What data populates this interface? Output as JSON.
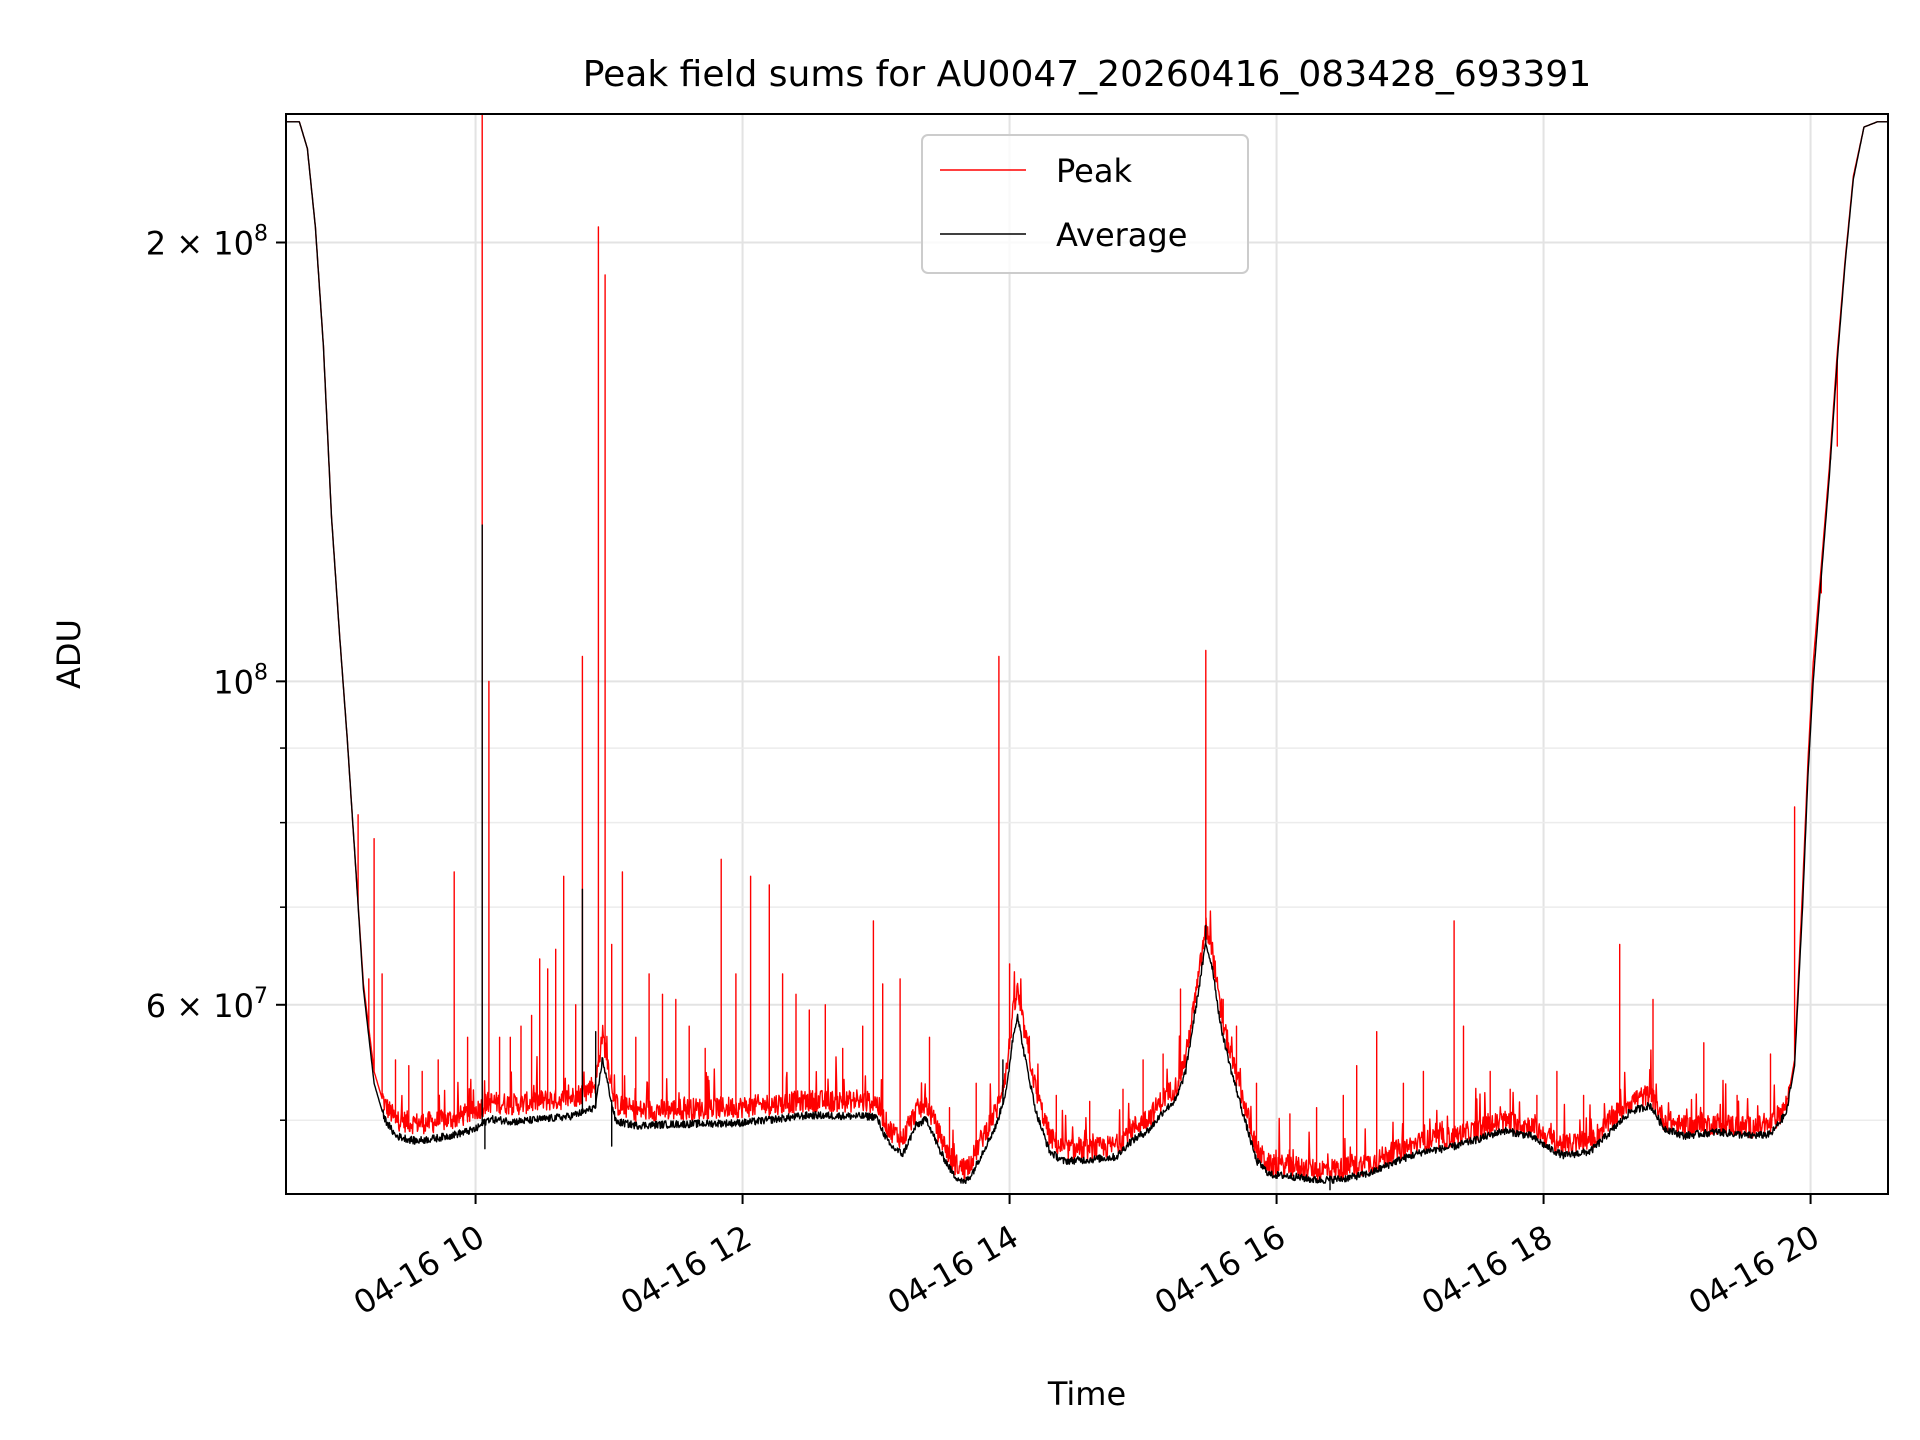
{
  "chart_data": {
    "type": "line",
    "title": "Peak field sums for AU0047_20260416_083428_693391",
    "xlabel": "Time",
    "ylabel": "ADU",
    "x_unit": "time of day on 04-16 (hours)",
    "xlim": [
      8.58,
      20.58
    ],
    "ylim": [
      44500000,
      245000000
    ],
    "yscale": "log",
    "grid": true,
    "legend_position": "top-center",
    "x_ticks": [
      {
        "value": 10,
        "label": "04-16 10"
      },
      {
        "value": 12,
        "label": "04-16 12"
      },
      {
        "value": 14,
        "label": "04-16 14"
      },
      {
        "value": 16,
        "label": "04-16 16"
      },
      {
        "value": 18,
        "label": "04-16 18"
      },
      {
        "value": 20,
        "label": "04-16 20"
      }
    ],
    "y_major_ticks": [
      {
        "value": 60000000,
        "label": "6 × 10",
        "exponent": "7"
      },
      {
        "value": 100000000,
        "label": "10",
        "exponent": "8"
      },
      {
        "value": 200000000,
        "label": "2 × 10",
        "exponent": "8"
      }
    ],
    "y_minor_ticks": [
      50000000,
      70000000,
      80000000,
      90000000
    ],
    "series": [
      {
        "name": "Peak",
        "color": "#ff0000",
        "baseline": [
          [
            8.58,
            242000000
          ],
          [
            8.68,
            242000000
          ],
          [
            8.74,
            232000000
          ],
          [
            8.8,
            205000000
          ],
          [
            8.86,
            170000000
          ],
          [
            8.92,
            130000000
          ],
          [
            8.98,
            108000000
          ],
          [
            9.04,
            91000000
          ],
          [
            9.1,
            75000000
          ],
          [
            9.16,
            62000000
          ],
          [
            9.24,
            54000000
          ],
          [
            9.32,
            51000000
          ],
          [
            9.4,
            49800000
          ],
          [
            9.55,
            49500000
          ],
          [
            9.7,
            49600000
          ],
          [
            9.85,
            49900000
          ],
          [
            10.0,
            50500000
          ],
          [
            10.1,
            51200000
          ],
          [
            10.3,
            51000000
          ],
          [
            10.5,
            51300000
          ],
          [
            10.7,
            51500000
          ],
          [
            10.82,
            52000000
          ],
          [
            10.9,
            52800000
          ],
          [
            10.95,
            57000000
          ],
          [
            11.05,
            51000000
          ],
          [
            11.2,
            50500000
          ],
          [
            11.5,
            50600000
          ],
          [
            12.0,
            50800000
          ],
          [
            12.5,
            51300000
          ],
          [
            13.0,
            51200000
          ],
          [
            13.1,
            49000000
          ],
          [
            13.2,
            48300000
          ],
          [
            13.3,
            50500000
          ],
          [
            13.38,
            51000000
          ],
          [
            13.48,
            48500000
          ],
          [
            13.58,
            46500000
          ],
          [
            13.66,
            46000000
          ],
          [
            13.72,
            46800000
          ],
          [
            13.8,
            48500000
          ],
          [
            13.9,
            50500000
          ],
          [
            13.98,
            54000000
          ],
          [
            14.02,
            58500000
          ],
          [
            14.06,
            61000000
          ],
          [
            14.1,
            58000000
          ],
          [
            14.2,
            52000000
          ],
          [
            14.3,
            48500000
          ],
          [
            14.4,
            47500000
          ],
          [
            14.6,
            47500000
          ],
          [
            14.8,
            47800000
          ],
          [
            14.9,
            49000000
          ],
          [
            15.05,
            50000000
          ],
          [
            15.15,
            51500000
          ],
          [
            15.25,
            52500000
          ],
          [
            15.32,
            55000000
          ],
          [
            15.4,
            61000000
          ],
          [
            15.47,
            67500000
          ],
          [
            15.52,
            65000000
          ],
          [
            15.58,
            59000000
          ],
          [
            15.66,
            55000000
          ],
          [
            15.76,
            51000000
          ],
          [
            15.85,
            47500000
          ],
          [
            15.95,
            46300000
          ],
          [
            16.1,
            46300000
          ],
          [
            16.3,
            46000000
          ],
          [
            16.5,
            46100000
          ],
          [
            16.7,
            46500000
          ],
          [
            16.9,
            47400000
          ],
          [
            17.1,
            48100000
          ],
          [
            17.3,
            48400000
          ],
          [
            17.5,
            49000000
          ],
          [
            17.7,
            49700000
          ],
          [
            17.9,
            49300000
          ],
          [
            18.05,
            48300000
          ],
          [
            18.15,
            47800000
          ],
          [
            18.35,
            48100000
          ],
          [
            18.5,
            49700000
          ],
          [
            18.65,
            51300000
          ],
          [
            18.8,
            51800000
          ],
          [
            18.9,
            49800000
          ],
          [
            19.05,
            49200000
          ],
          [
            19.3,
            49500000
          ],
          [
            19.55,
            49200000
          ],
          [
            19.7,
            49300000
          ],
          [
            19.82,
            51000000
          ],
          [
            19.88,
            55000000
          ],
          [
            19.94,
            72000000
          ],
          [
            19.98,
            88000000
          ],
          [
            20.02,
            103000000
          ],
          [
            20.08,
            120000000
          ],
          [
            20.14,
            140000000
          ],
          [
            20.2,
            168000000
          ],
          [
            20.26,
            195000000
          ],
          [
            20.32,
            222000000
          ],
          [
            20.4,
            240000000
          ],
          [
            20.5,
            242000000
          ],
          [
            20.58,
            242000000
          ]
        ],
        "spikes": [
          [
            9.12,
            81000000
          ],
          [
            9.2,
            62500000
          ],
          [
            9.24,
            78000000
          ],
          [
            9.3,
            63000000
          ],
          [
            9.4,
            55000000
          ],
          [
            9.5,
            54500000
          ],
          [
            9.6,
            54000000
          ],
          [
            9.72,
            55000000
          ],
          [
            9.84,
            74000000
          ],
          [
            9.94,
            57000000
          ],
          [
            10.05,
            245000000
          ],
          [
            10.1,
            100000000
          ],
          [
            10.18,
            57000000
          ],
          [
            10.26,
            57000000
          ],
          [
            10.34,
            58000000
          ],
          [
            10.42,
            59000000
          ],
          [
            10.48,
            64500000
          ],
          [
            10.54,
            63500000
          ],
          [
            10.6,
            65500000
          ],
          [
            10.66,
            73500000
          ],
          [
            10.75,
            60000000
          ],
          [
            10.8,
            104000000
          ],
          [
            10.92,
            205000000
          ],
          [
            10.97,
            190000000
          ],
          [
            11.02,
            66000000
          ],
          [
            11.1,
            74000000
          ],
          [
            11.2,
            57000000
          ],
          [
            11.3,
            63000000
          ],
          [
            11.4,
            61000000
          ],
          [
            11.5,
            60500000
          ],
          [
            11.6,
            58000000
          ],
          [
            11.72,
            56000000
          ],
          [
            11.84,
            75500000
          ],
          [
            11.95,
            63000000
          ],
          [
            12.06,
            73500000
          ],
          [
            12.2,
            72500000
          ],
          [
            12.3,
            63000000
          ],
          [
            12.4,
            61000000
          ],
          [
            12.5,
            59500000
          ],
          [
            12.62,
            60000000
          ],
          [
            12.75,
            56000000
          ],
          [
            12.9,
            58000000
          ],
          [
            12.98,
            68500000
          ],
          [
            13.05,
            62000000
          ],
          [
            13.18,
            62500000
          ],
          [
            13.4,
            57000000
          ],
          [
            13.55,
            51000000
          ],
          [
            13.75,
            53000000
          ],
          [
            13.92,
            104000000
          ],
          [
            14.0,
            64000000
          ],
          [
            14.15,
            55000000
          ],
          [
            14.35,
            52000000
          ],
          [
            14.6,
            51500000
          ],
          [
            14.85,
            52500000
          ],
          [
            15.0,
            55000000
          ],
          [
            15.15,
            55500000
          ],
          [
            15.28,
            61500000
          ],
          [
            15.47,
            105000000
          ],
          [
            15.6,
            60500000
          ],
          [
            15.7,
            58000000
          ],
          [
            15.85,
            53000000
          ],
          [
            16.1,
            50500000
          ],
          [
            16.3,
            51000000
          ],
          [
            16.5,
            52000000
          ],
          [
            16.6,
            54500000
          ],
          [
            16.75,
            57500000
          ],
          [
            16.95,
            53000000
          ],
          [
            17.1,
            54000000
          ],
          [
            17.33,
            68500000
          ],
          [
            17.4,
            58000000
          ],
          [
            17.6,
            54000000
          ],
          [
            17.75,
            52500000
          ],
          [
            17.95,
            52000000
          ],
          [
            18.1,
            54000000
          ],
          [
            18.3,
            52000000
          ],
          [
            18.57,
            66000000
          ],
          [
            18.82,
            60500000
          ],
          [
            19.2,
            56500000
          ],
          [
            19.45,
            52000000
          ],
          [
            19.7,
            55500000
          ],
          [
            19.88,
            82000000
          ],
          [
            20.08,
            115000000
          ],
          [
            20.15,
            142000000
          ],
          [
            20.2,
            145000000
          ]
        ]
      },
      {
        "name": "Average",
        "color": "#000000",
        "baseline": [
          [
            8.58,
            242000000
          ],
          [
            8.68,
            242000000
          ],
          [
            8.74,
            232000000
          ],
          [
            8.8,
            205000000
          ],
          [
            8.86,
            170000000
          ],
          [
            8.92,
            130000000
          ],
          [
            8.98,
            108000000
          ],
          [
            9.04,
            91000000
          ],
          [
            9.1,
            75000000
          ],
          [
            9.16,
            61500000
          ],
          [
            9.24,
            53000000
          ],
          [
            9.32,
            50000000
          ],
          [
            9.4,
            48700000
          ],
          [
            9.55,
            48300000
          ],
          [
            9.7,
            48500000
          ],
          [
            9.85,
            48800000
          ],
          [
            10.0,
            49200000
          ],
          [
            10.1,
            50000000
          ],
          [
            10.3,
            49800000
          ],
          [
            10.5,
            50000000
          ],
          [
            10.7,
            50200000
          ],
          [
            10.82,
            50600000
          ],
          [
            10.9,
            51000000
          ],
          [
            10.95,
            55000000
          ],
          [
            11.05,
            49800000
          ],
          [
            11.2,
            49500000
          ],
          [
            11.5,
            49600000
          ],
          [
            12.0,
            49700000
          ],
          [
            12.5,
            50300000
          ],
          [
            13.0,
            50200000
          ],
          [
            13.1,
            48000000
          ],
          [
            13.2,
            47300000
          ],
          [
            13.3,
            49500000
          ],
          [
            13.38,
            50000000
          ],
          [
            13.48,
            47500000
          ],
          [
            13.58,
            45800000
          ],
          [
            13.66,
            45200000
          ],
          [
            13.72,
            45900000
          ],
          [
            13.8,
            47500000
          ],
          [
            13.9,
            49500000
          ],
          [
            13.98,
            52500000
          ],
          [
            14.02,
            56500000
          ],
          [
            14.06,
            59000000
          ],
          [
            14.1,
            56000000
          ],
          [
            14.2,
            50500000
          ],
          [
            14.3,
            47500000
          ],
          [
            14.4,
            46800000
          ],
          [
            14.6,
            46900000
          ],
          [
            14.8,
            47100000
          ],
          [
            14.9,
            48200000
          ],
          [
            15.05,
            49200000
          ],
          [
            15.15,
            50600000
          ],
          [
            15.25,
            51600000
          ],
          [
            15.32,
            54000000
          ],
          [
            15.4,
            60000000
          ],
          [
            15.47,
            66000000
          ],
          [
            15.52,
            63500000
          ],
          [
            15.58,
            58000000
          ],
          [
            15.66,
            54000000
          ],
          [
            15.76,
            50000000
          ],
          [
            15.85,
            46800000
          ],
          [
            15.95,
            45800000
          ],
          [
            16.1,
            45700000
          ],
          [
            16.3,
            45400000
          ],
          [
            16.5,
            45500000
          ],
          [
            16.7,
            45900000
          ],
          [
            16.9,
            46800000
          ],
          [
            17.1,
            47500000
          ],
          [
            17.3,
            47800000
          ],
          [
            17.5,
            48400000
          ],
          [
            17.7,
            49100000
          ],
          [
            17.9,
            48700000
          ],
          [
            18.05,
            47700000
          ],
          [
            18.15,
            47200000
          ],
          [
            18.35,
            47500000
          ],
          [
            18.5,
            49000000
          ],
          [
            18.65,
            50600000
          ],
          [
            18.8,
            51100000
          ],
          [
            18.9,
            49300000
          ],
          [
            19.05,
            48700000
          ],
          [
            19.3,
            49000000
          ],
          [
            19.55,
            48700000
          ],
          [
            19.7,
            48800000
          ],
          [
            19.82,
            50500000
          ],
          [
            19.88,
            54500000
          ],
          [
            19.94,
            70000000
          ],
          [
            19.98,
            86000000
          ],
          [
            20.02,
            100000000
          ],
          [
            20.08,
            118000000
          ],
          [
            20.14,
            138000000
          ],
          [
            20.2,
            166000000
          ],
          [
            20.26,
            194000000
          ],
          [
            20.32,
            221000000
          ],
          [
            20.4,
            240000000
          ],
          [
            20.5,
            242000000
          ],
          [
            20.58,
            242000000
          ]
        ],
        "spikes": [
          [
            10.05,
            128000000
          ],
          [
            10.07,
            47800000
          ],
          [
            10.8,
            72000000
          ],
          [
            10.9,
            57500000
          ],
          [
            11.02,
            48000000
          ],
          [
            13.95,
            55000000
          ],
          [
            15.47,
            68000000
          ],
          [
            16.4,
            44800000
          ]
        ]
      }
    ]
  }
}
